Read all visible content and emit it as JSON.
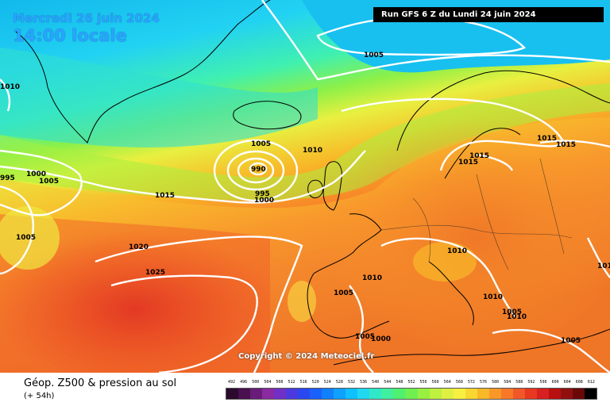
{
  "header": {
    "date": "Mercredi 26 juin 2024",
    "local_time": "14:00 locale",
    "run": "Run GFS 6 Z du Lundi 24 juin 2024"
  },
  "copyright": "Copyright © 2024 Meteociel.fr",
  "footer": {
    "title": "Géop. Z500 & pression au sol",
    "subtitle": "(+ 54h)"
  },
  "legend": {
    "values": [
      "492",
      "496",
      "500",
      "504",
      "508",
      "512",
      "516",
      "520",
      "524",
      "528",
      "532",
      "536",
      "540",
      "544",
      "548",
      "552",
      "556",
      "560",
      "564",
      "568",
      "572",
      "576",
      "580",
      "584",
      "588",
      "592",
      "596",
      "600",
      "604",
      "608",
      "612"
    ],
    "colors": [
      "#2b0a2e",
      "#4a1050",
      "#6a1c7a",
      "#8a2aa0",
      "#7030c8",
      "#4a3ae0",
      "#2a48f0",
      "#1a60ff",
      "#1080ff",
      "#10a0ff",
      "#10c0ff",
      "#20d8f0",
      "#30e8c8",
      "#40f0a0",
      "#50f070",
      "#70f050",
      "#98f040",
      "#c0f040",
      "#e0f040",
      "#f8f040",
      "#f8d830",
      "#f8b828",
      "#f89828",
      "#f87828",
      "#f05828",
      "#e83820",
      "#d82020",
      "#b81010",
      "#901010",
      "#6a0808",
      "#000000"
    ]
  },
  "isobars": [
    {
      "text": "1005"
    },
    {
      "text": "1010"
    },
    {
      "text": "995"
    },
    {
      "text": "1000"
    },
    {
      "text": "1005"
    },
    {
      "text": "1005"
    },
    {
      "text": "1005"
    },
    {
      "text": "990"
    },
    {
      "text": "995"
    },
    {
      "text": "1000"
    },
    {
      "text": "1010"
    },
    {
      "text": "1015"
    },
    {
      "text": "1020"
    },
    {
      "text": "1025"
    },
    {
      "text": "1015"
    },
    {
      "text": "1015"
    },
    {
      "text": "1015"
    },
    {
      "text": "1015"
    },
    {
      "text": "1010"
    },
    {
      "text": "1010"
    },
    {
      "text": "1005"
    },
    {
      "text": "1010"
    },
    {
      "text": "1010"
    },
    {
      "text": "1005"
    },
    {
      "text": "1000"
    },
    {
      "text": "1005"
    },
    {
      "text": "1005"
    },
    {
      "text": "1010"
    }
  ]
}
